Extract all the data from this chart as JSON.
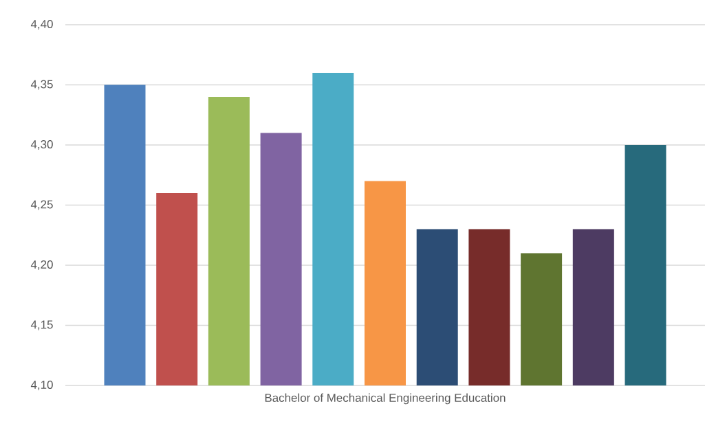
{
  "chart_data": {
    "type": "bar",
    "categories": [
      "Bachelor of Mechanical Engineering Education"
    ],
    "series": [
      {
        "color": "#4f81bd",
        "values": [
          4.35
        ]
      },
      {
        "color": "#c0504d",
        "values": [
          4.26
        ]
      },
      {
        "color": "#9bbb59",
        "values": [
          4.34
        ]
      },
      {
        "color": "#8064a2",
        "values": [
          4.31
        ]
      },
      {
        "color": "#4bacc6",
        "values": [
          4.36
        ]
      },
      {
        "color": "#f79646",
        "values": [
          4.27
        ]
      },
      {
        "color": "#2c4d75",
        "values": [
          4.23
        ]
      },
      {
        "color": "#772c2a",
        "values": [
          4.23
        ]
      },
      {
        "color": "#5f7530",
        "values": [
          4.21
        ]
      },
      {
        "color": "#4d3b62",
        "values": [
          4.23
        ]
      },
      {
        "color": "#276a7c",
        "values": [
          4.3
        ]
      }
    ],
    "ylim": [
      4.1,
      4.4
    ],
    "yticks": [
      {
        "value": 4.1,
        "label": "4,10"
      },
      {
        "value": 4.15,
        "label": "4,15"
      },
      {
        "value": 4.2,
        "label": "4,20"
      },
      {
        "value": 4.25,
        "label": "4,25"
      },
      {
        "value": 4.3,
        "label": "4,30"
      },
      {
        "value": 4.35,
        "label": "4,35"
      },
      {
        "value": 4.4,
        "label": "4,40"
      }
    ],
    "grid": "y"
  }
}
